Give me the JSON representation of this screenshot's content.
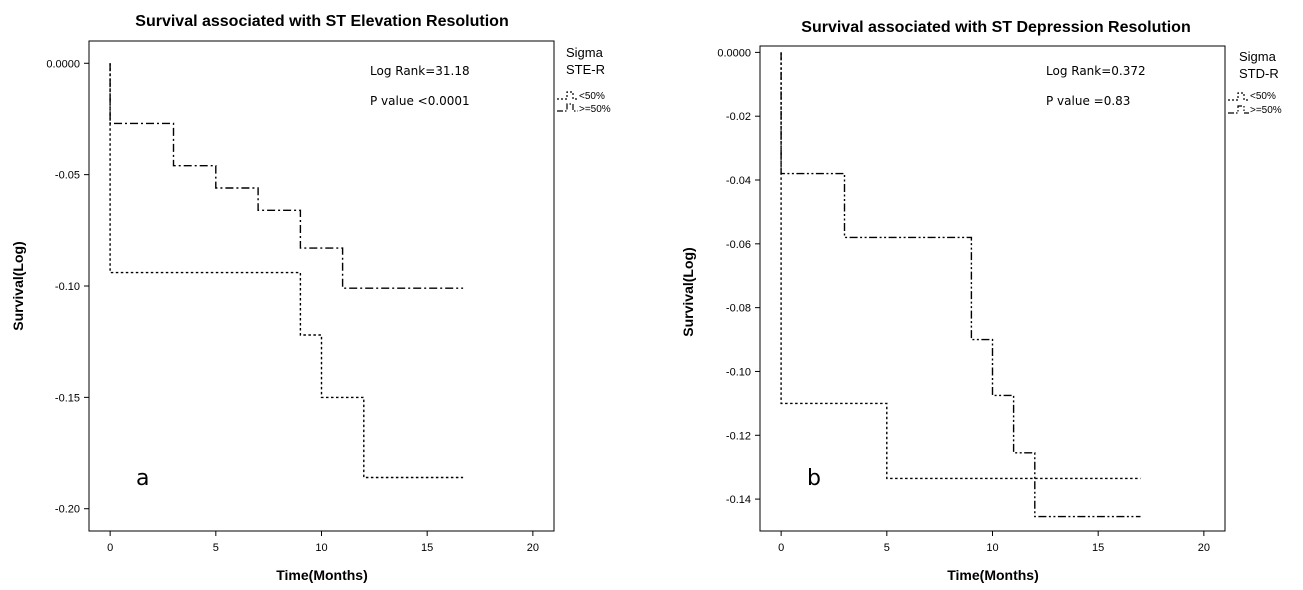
{
  "chart_data": [
    {
      "type": "line",
      "title": "Survival associated with ST Elevation Resolution",
      "xlabel": "Time(Months)",
      "ylabel": "Survival(Log)",
      "xlim": [
        -1,
        21
      ],
      "ylim": [
        -0.21,
        0.01
      ],
      "xticks": [
        0,
        5,
        10,
        15,
        20
      ],
      "yticks": [
        0,
        -0.05,
        -0.1,
        -0.15,
        -0.2
      ],
      "ytick_labels": [
        "0.0000",
        "-0.05",
        "-0.10",
        "-0.15",
        "-0.20"
      ],
      "grid": false,
      "annotations": [
        "Log Rank=31.18",
        "P value <0.0001"
      ],
      "panel_label": "a",
      "legend": {
        "title_lines": [
          "Sigma",
          "STE-R"
        ],
        "entries": [
          "<50%",
          ">=50%"
        ],
        "placement": "right"
      },
      "series": [
        {
          "name": "<50%",
          "style": "dotted",
          "step_x": [
            0,
            0,
            9,
            9,
            10,
            10,
            12,
            12,
            16.7
          ],
          "step_y": [
            0,
            -0.094,
            -0.094,
            -0.122,
            -0.122,
            -0.15,
            -0.15,
            -0.186,
            -0.186
          ]
        },
        {
          "name": ">=50%",
          "style": "dashdot",
          "step_x": [
            0,
            0,
            3,
            3,
            5,
            5,
            7,
            7,
            9,
            9,
            11,
            11,
            16.7
          ],
          "step_y": [
            0,
            -0.027,
            -0.027,
            -0.046,
            -0.046,
            -0.056,
            -0.056,
            -0.066,
            -0.066,
            -0.083,
            -0.083,
            -0.101,
            -0.101
          ]
        }
      ]
    },
    {
      "type": "line",
      "title": "Survival associated with ST Depression Resolution",
      "xlabel": "Time(Months)",
      "ylabel": "Survival(Log)",
      "xlim": [
        -1,
        21
      ],
      "ylim": [
        -0.15,
        0.002
      ],
      "xticks": [
        0,
        5,
        10,
        15,
        20
      ],
      "yticks": [
        0,
        -0.02,
        -0.04,
        -0.06,
        -0.08,
        -0.1,
        -0.12,
        -0.14
      ],
      "ytick_labels": [
        "0.0000",
        "-0.02",
        "-0.04",
        "-0.06",
        "-0.08",
        "-0.10",
        "-0.12",
        "-0.14"
      ],
      "grid": false,
      "annotations": [
        "Log Rank=0.372",
        "P value =0.83"
      ],
      "panel_label": "b",
      "legend": {
        "title_lines": [
          "Sigma",
          "STD-R"
        ],
        "entries": [
          "<50%",
          ">=50%"
        ],
        "placement": "right"
      },
      "series": [
        {
          "name": "<50%",
          "style": "dotted",
          "step_x": [
            0,
            0,
            5,
            5,
            17
          ],
          "step_y": [
            0,
            -0.11,
            -0.11,
            -0.1335,
            -0.1335
          ]
        },
        {
          "name": ">=50%",
          "style": "dashdotdot",
          "step_x": [
            0,
            0,
            3,
            3,
            9,
            9,
            10,
            10,
            11,
            11,
            12,
            12,
            17
          ],
          "step_y": [
            0,
            -0.038,
            -0.038,
            -0.058,
            -0.058,
            -0.09,
            -0.09,
            -0.1075,
            -0.1075,
            -0.1255,
            -0.1255,
            -0.1455,
            -0.1455
          ]
        }
      ]
    }
  ]
}
